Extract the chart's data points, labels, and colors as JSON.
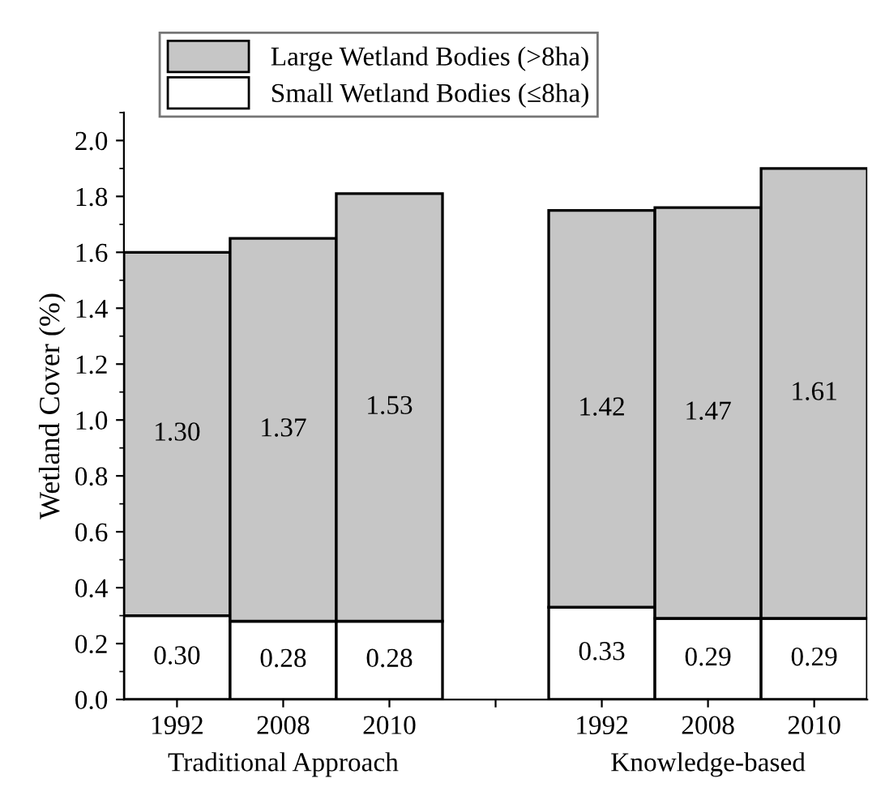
{
  "chart_data": {
    "type": "bar",
    "stacked": true,
    "ylabel": "Wetland Cover (%)",
    "categories": [
      "1992",
      "2008",
      "2010",
      null,
      "1992",
      "2008",
      "2010"
    ],
    "series": [
      {
        "name": "Small Wetland Bodies (≤8ha)",
        "color": "#ffffff",
        "values": [
          0.3,
          0.28,
          0.28,
          null,
          0.33,
          0.29,
          0.29
        ],
        "value_labels": [
          "0.30",
          "0.28",
          "0.28",
          null,
          "0.33",
          "0.29",
          "0.29"
        ]
      },
      {
        "name": "Large Wetland Bodies (>8ha)",
        "color": "#c6c6c6",
        "values": [
          1.3,
          1.37,
          1.53,
          null,
          1.42,
          1.47,
          1.61
        ],
        "value_labels": [
          "1.30",
          "1.37",
          "1.53",
          null,
          "1.42",
          "1.47",
          "1.61"
        ]
      }
    ],
    "annotations": [
      "Traditional Approach",
      "Knowledge-based"
    ],
    "ylim": [
      0,
      2.1
    ],
    "yticks": [
      {
        "value": 0,
        "label": "0.0"
      },
      0.2,
      0.4,
      0.6,
      0.8,
      {
        "value": 1,
        "label": "1.0"
      },
      1.2,
      1.4,
      1.6,
      1.8,
      {
        "value": 2,
        "label": "2.0"
      }
    ],
    "grid": false,
    "legend": "top left"
  }
}
